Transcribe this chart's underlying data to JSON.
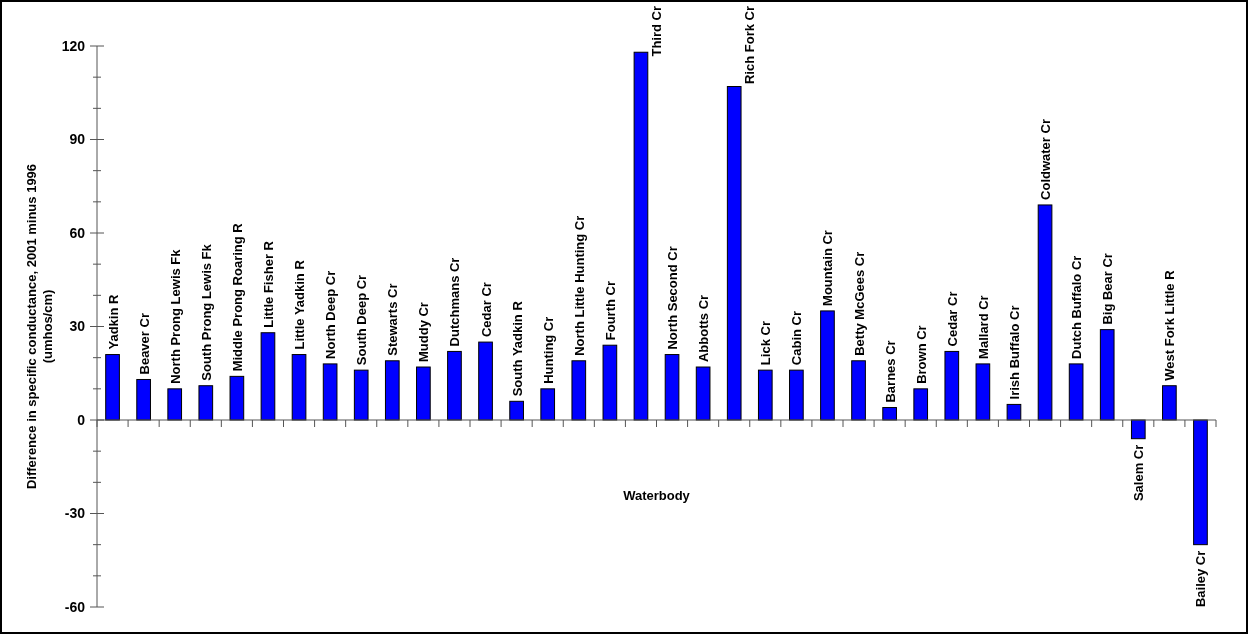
{
  "chart_data": {
    "type": "bar",
    "xlabel": "Waterbody",
    "ylabel": "Difference in specific conductance, 2001 minus 1996 (umhos/cm)",
    "categories": [
      "Yadkin R",
      "Beaver Cr",
      "North Prong Lewis Fk",
      "South Prong Lewis Fk",
      "Middle Prong Roaring R",
      "Little Fisher R",
      "Little Yadkin R",
      "North Deep Cr",
      "South Deep Cr",
      "Stewarts Cr",
      "Muddy Cr",
      "Dutchmans Cr",
      "Cedar Cr",
      "South Yadkin R",
      "Hunting Cr",
      "North Little Hunting Cr",
      "Fourth Cr",
      "Third Cr",
      "North Second Cr",
      "Abbotts Cr",
      "Rich Fork Cr",
      "Lick Cr",
      "Cabin Cr",
      "Mountain Cr",
      "Betty McGees Cr",
      "Barnes Cr",
      "Brown Cr",
      "Cedar Cr",
      "Mallard Cr",
      "Irish Buffalo Cr",
      "Coldwater Cr",
      "Dutch Buffalo Cr",
      "Big Bear Cr",
      "Salem Cr",
      "West Fork Little R",
      "Bailey Cr"
    ],
    "values": [
      21,
      13,
      10,
      11,
      14,
      28,
      21,
      18,
      16,
      19,
      17,
      22,
      25,
      6,
      10,
      19,
      24,
      118,
      21,
      17,
      107,
      16,
      16,
      35,
      19,
      4,
      10,
      22,
      18,
      5,
      69,
      18,
      29,
      -6,
      11,
      -40
    ],
    "color": "#0000ff",
    "ylim": [
      -60,
      120
    ],
    "yticks": [
      -60,
      -30,
      0,
      30,
      60,
      90,
      120
    ]
  }
}
